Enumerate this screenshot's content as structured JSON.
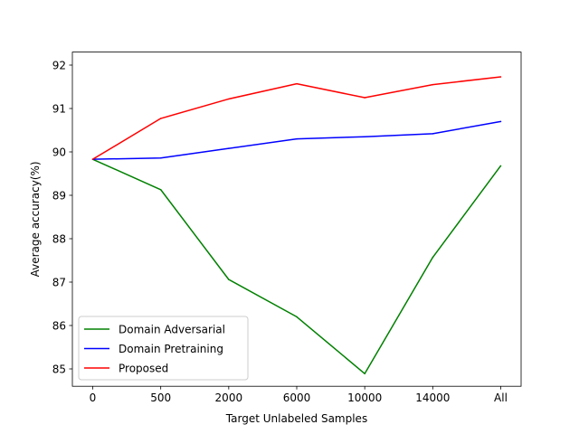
{
  "chart_data": {
    "type": "line",
    "title": "",
    "xlabel": "Target Unlabeled Samples",
    "ylabel": "Average accuracy(%)",
    "categories": [
      "0",
      "500",
      "2000",
      "6000",
      "10000",
      "14000",
      "All"
    ],
    "ylim": [
      84.6,
      92.3
    ],
    "yticks": [
      85,
      86,
      87,
      88,
      89,
      90,
      91,
      92
    ],
    "grid": false,
    "legend_position": "lower-left",
    "series": [
      {
        "name": "Domain Adversarial",
        "color": "#008000",
        "values": [
          89.83,
          89.13,
          87.06,
          86.2,
          84.89,
          87.57,
          89.68
        ]
      },
      {
        "name": "Domain Pretraining",
        "color": "#0000ff",
        "values": [
          89.83,
          89.86,
          90.08,
          90.3,
          90.35,
          90.42,
          90.7
        ]
      },
      {
        "name": "Proposed",
        "color": "#ff0000",
        "values": [
          89.83,
          90.77,
          91.22,
          91.57,
          91.25,
          91.55,
          91.73
        ]
      }
    ]
  }
}
